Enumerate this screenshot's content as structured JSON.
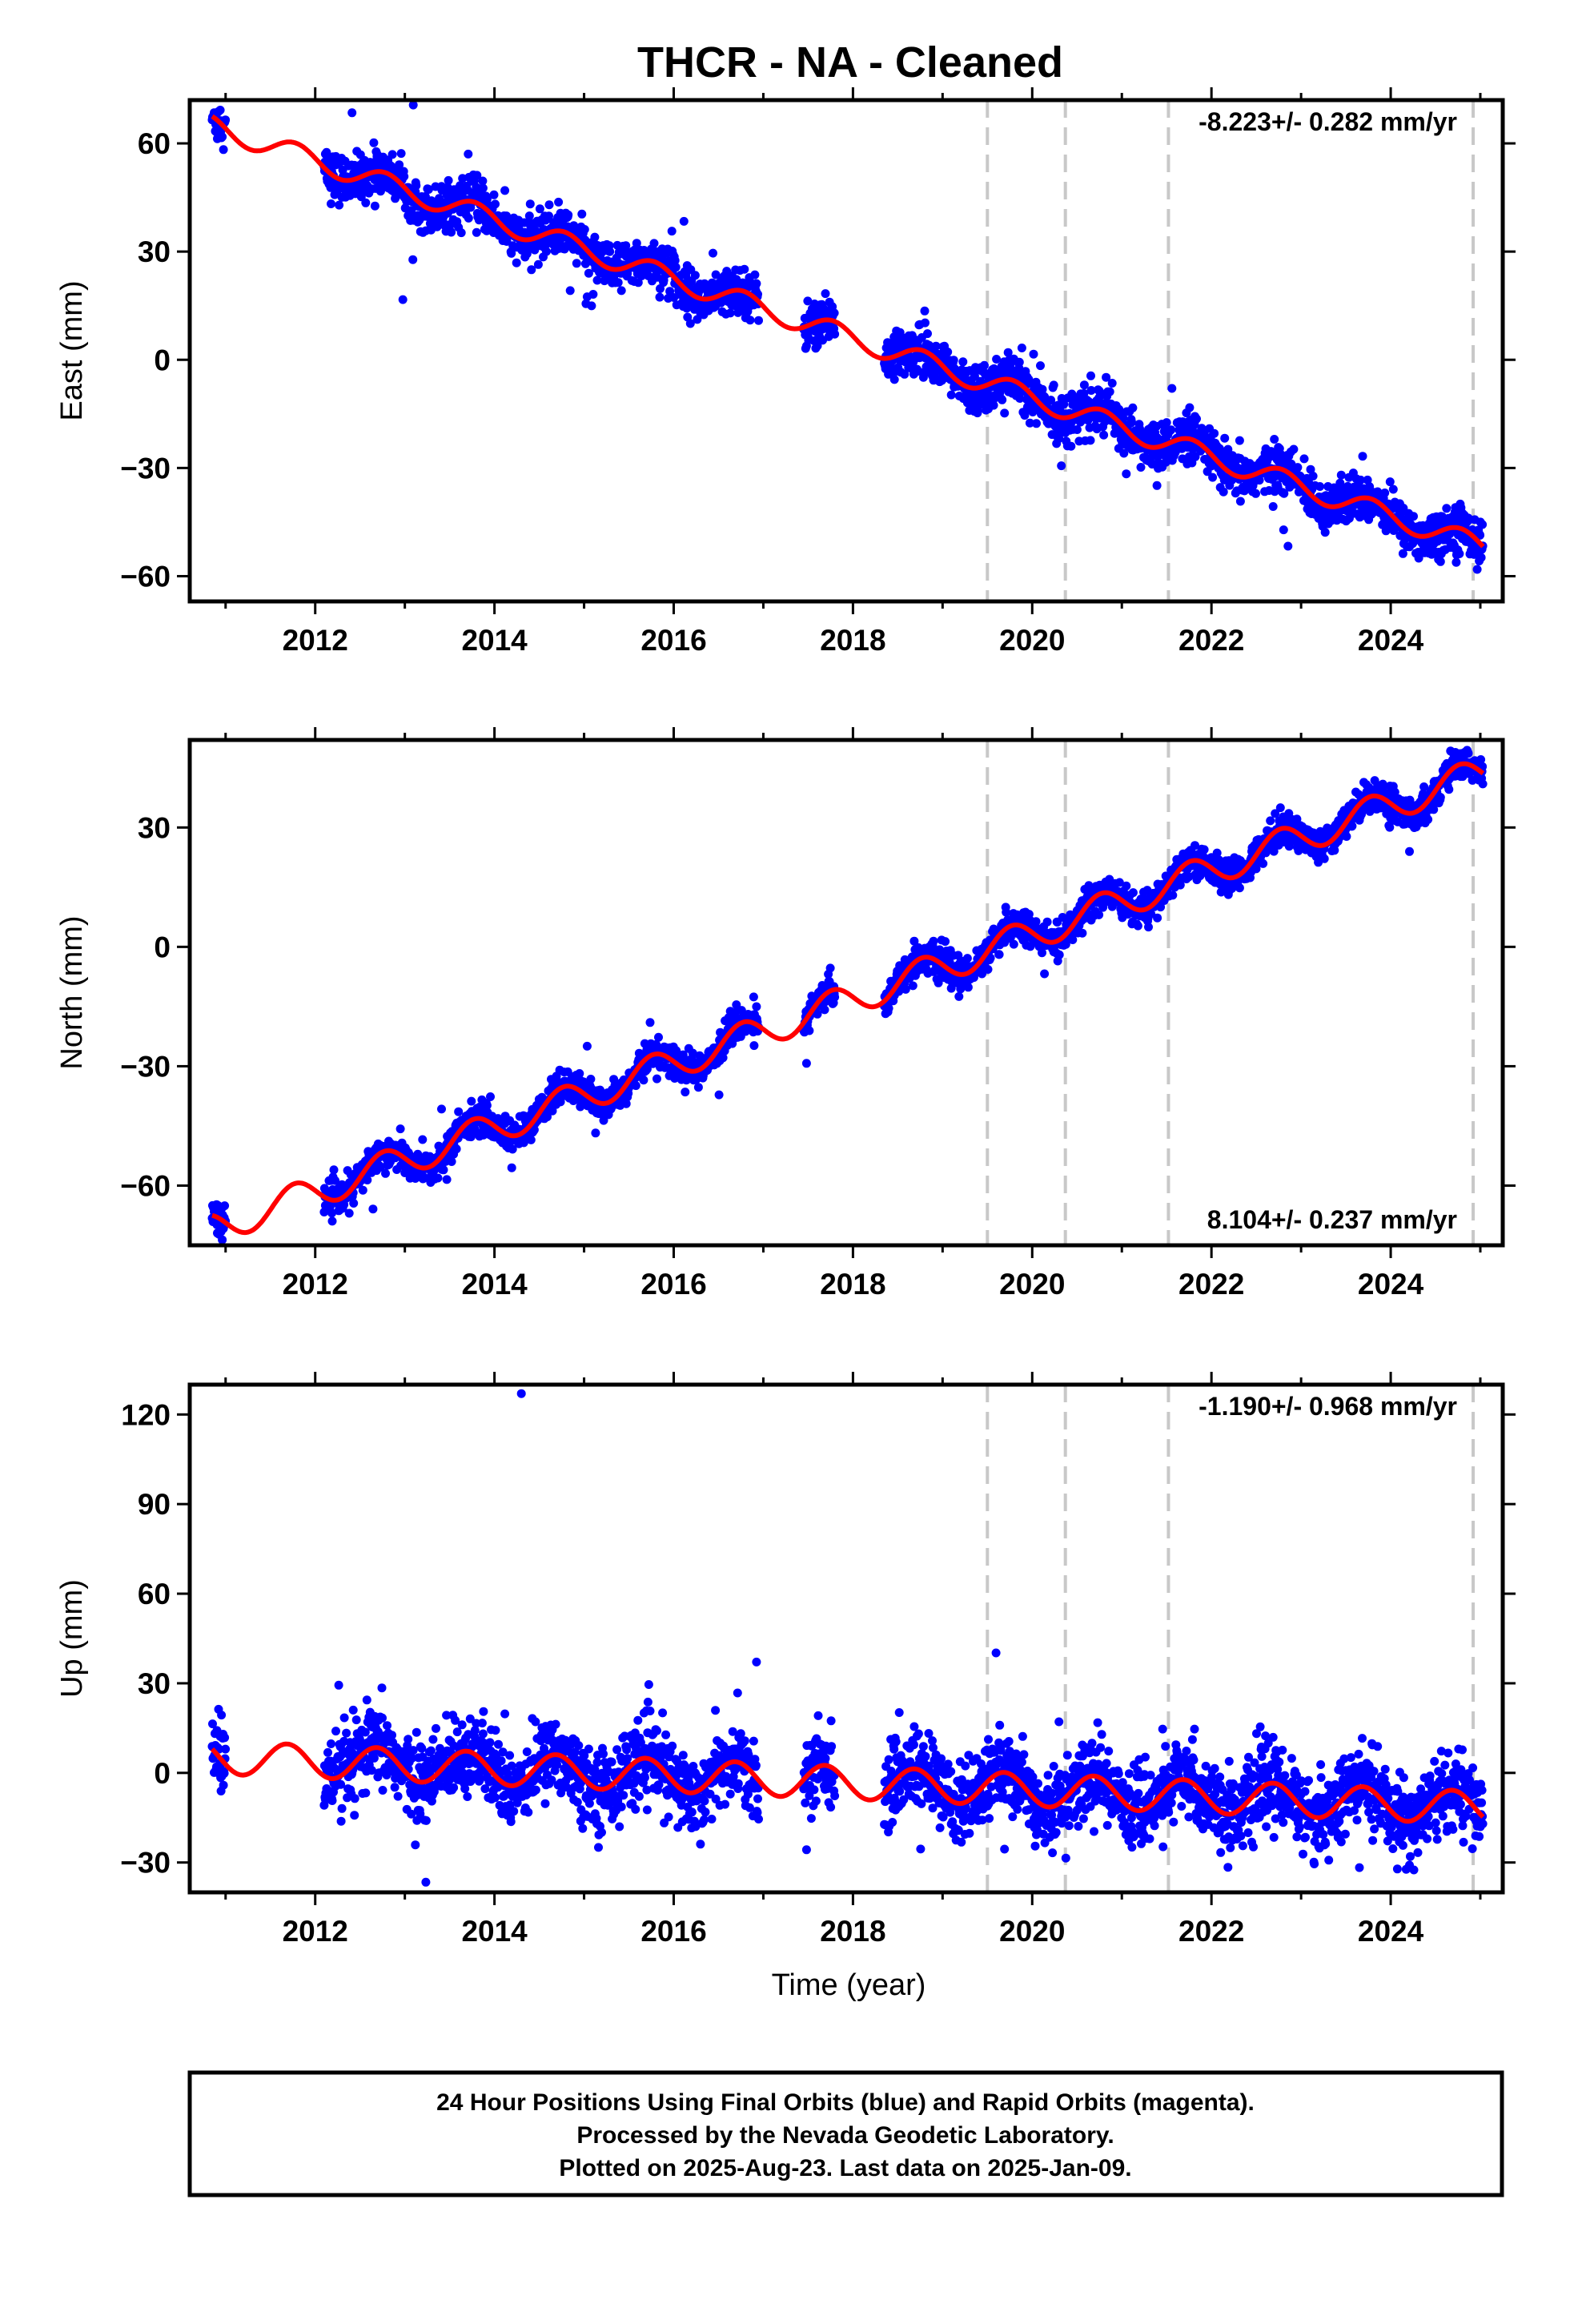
{
  "title": "THCR  - NA - Cleaned",
  "x_axis_label": "Time (year)",
  "colors": {
    "final_orbits": "#0000ff",
    "model_fit": "#ff0000",
    "event_lines": "#c8c8c8",
    "frame": "#000000"
  },
  "footer": {
    "line1": "24 Hour Positions Using Final Orbits (blue) and Rapid Orbits (magenta).",
    "line2": "Processed by the Nevada Geodetic Laboratory.",
    "line3": "Plotted on 2025-Aug-23. Last data on 2025-Jan-09."
  },
  "chart_data": [
    {
      "type": "scatter",
      "component": "east",
      "ylabel": "East (mm)",
      "rate_text": "-8.223+/- 0.282 mm/yr",
      "rate_position": "top-right",
      "xlim": [
        2010.6,
        2025.25
      ],
      "ylim": [
        -67,
        72
      ],
      "x_ticks": [
        2012,
        2014,
        2016,
        2018,
        2020,
        2022,
        2024
      ],
      "x_tick_labels": [
        "2012",
        "2014",
        "2016",
        "2018",
        "2020",
        "2022",
        "2024"
      ],
      "y_ticks": [
        -60,
        -30,
        0,
        30,
        60
      ],
      "y_tick_labels": [
        "−60",
        "−30",
        "0",
        "30",
        "60"
      ],
      "event_lines": [
        2019.5,
        2020.37,
        2021.52,
        2024.92
      ],
      "model": {
        "intercept": 67.5,
        "ref_year": 2010.85,
        "slope": -8.223,
        "annual_amplitude": 3.0,
        "annual_phase": 2.0
      },
      "data_periods": [
        [
          2010.85,
          2011.0
        ],
        [
          2012.1,
          2016.95
        ],
        [
          2017.45,
          2017.8
        ],
        [
          2018.35,
          2025.03
        ]
      ],
      "noise_mm": 3.2,
      "series": [
        {
          "name": "Final Orbits",
          "style": "points"
        },
        {
          "name": "Model",
          "style": "line"
        }
      ]
    },
    {
      "type": "scatter",
      "component": "north",
      "ylabel": "North (mm)",
      "rate_text": "8.104+/- 0.237 mm/yr",
      "rate_position": "bottom-right",
      "xlim": [
        2010.6,
        2025.25
      ],
      "ylim": [
        -75,
        52
      ],
      "x_ticks": [
        2012,
        2014,
        2016,
        2018,
        2020,
        2022,
        2024
      ],
      "x_tick_labels": [
        "2012",
        "2014",
        "2016",
        "2018",
        "2020",
        "2022",
        "2024"
      ],
      "y_ticks": [
        -60,
        -30,
        0,
        30
      ],
      "y_tick_labels": [
        "−60",
        "−30",
        "0",
        "30"
      ],
      "event_lines": [
        2019.5,
        2020.37,
        2021.52,
        2024.92
      ],
      "model": {
        "intercept": -67.5,
        "ref_year": 2010.85,
        "slope": 8.104,
        "annual_amplitude": 4.0,
        "annual_phase": 2.1
      },
      "data_periods": [
        [
          2010.85,
          2011.0
        ],
        [
          2012.1,
          2016.95
        ],
        [
          2017.45,
          2017.8
        ],
        [
          2018.35,
          2025.03
        ]
      ],
      "noise_mm": 2.0,
      "series": [
        {
          "name": "Final Orbits",
          "style": "points"
        },
        {
          "name": "Model",
          "style": "line"
        }
      ]
    },
    {
      "type": "scatter",
      "component": "up",
      "ylabel": "Up (mm)",
      "rate_text": "-1.190+/- 0.968 mm/yr",
      "rate_position": "top-right",
      "xlim": [
        2010.6,
        2025.25
      ],
      "ylim": [
        -40,
        130
      ],
      "x_ticks": [
        2012,
        2014,
        2016,
        2018,
        2020,
        2022,
        2024
      ],
      "x_tick_labels": [
        "2012",
        "2014",
        "2016",
        "2018",
        "2020",
        "2022",
        "2024"
      ],
      "y_ticks": [
        -30,
        0,
        30,
        60,
        90,
        120
      ],
      "y_tick_labels": [
        "−30",
        "0",
        "30",
        "60",
        "90",
        "120"
      ],
      "event_lines": [
        2019.5,
        2020.37,
        2021.52,
        2024.92
      ],
      "model": {
        "intercept": 8.0,
        "ref_year": 2010.85,
        "slope": -1.19,
        "annual_amplitude": 5.5,
        "annual_phase": 2.6
      },
      "data_periods": [
        [
          2010.85,
          2011.0
        ],
        [
          2012.1,
          2016.95
        ],
        [
          2017.45,
          2017.8
        ],
        [
          2018.35,
          2025.03
        ]
      ],
      "noise_mm": 6.5,
      "outliers": [
        [
          2014.3,
          127
        ]
      ],
      "series": [
        {
          "name": "Final Orbits",
          "style": "points"
        },
        {
          "name": "Model",
          "style": "line"
        }
      ]
    }
  ]
}
